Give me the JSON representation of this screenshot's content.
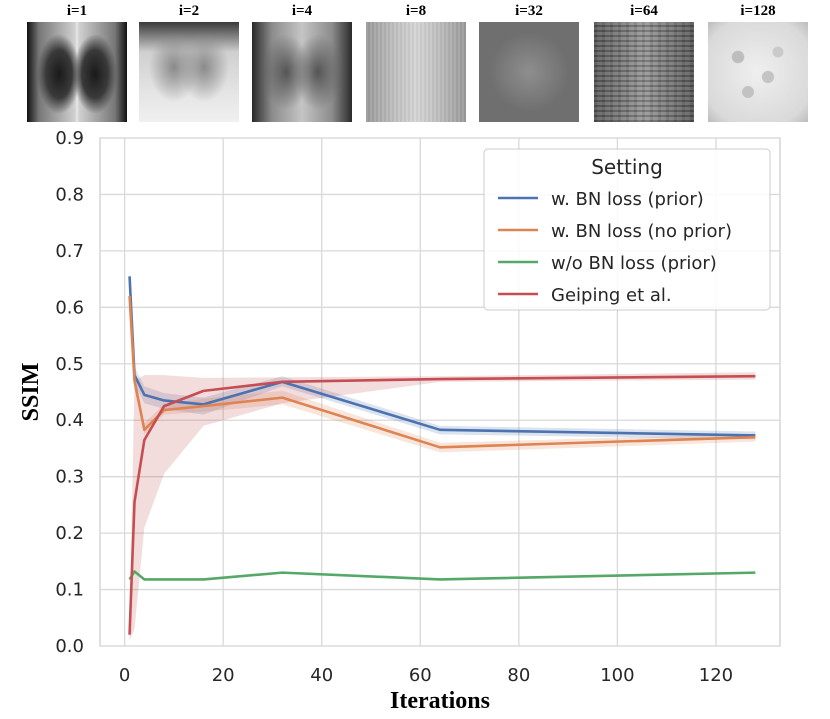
{
  "thumbnails": [
    {
      "label": "i=1",
      "style": "xray-clear"
    },
    {
      "label": "i=2",
      "style": "xray-bright"
    },
    {
      "label": "i=4",
      "style": "xray-soft"
    },
    {
      "label": "i=8",
      "style": "xray-faint"
    },
    {
      "label": "i=32",
      "style": "gray-dark"
    },
    {
      "label": "i=64",
      "style": "gray-striped"
    },
    {
      "label": "i=128",
      "style": "noise-light"
    }
  ],
  "chart_data": {
    "type": "line",
    "xlabel": "Iterations",
    "ylabel": "SSIM",
    "xlim": [
      -5,
      133
    ],
    "ylim": [
      0.0,
      0.9
    ],
    "xticks": [
      0,
      20,
      40,
      60,
      80,
      100,
      120
    ],
    "xtick_labels": [
      "0",
      "20",
      "40",
      "60",
      "80",
      "100",
      "120"
    ],
    "yticks": [
      0.0,
      0.1,
      0.2,
      0.3,
      0.4,
      0.5,
      0.6,
      0.7,
      0.8,
      0.9
    ],
    "ytick_labels": [
      "0.0",
      "0.1",
      "0.2",
      "0.3",
      "0.4",
      "0.5",
      "0.6",
      "0.7",
      "0.8",
      "0.9"
    ],
    "grid": true,
    "legend": {
      "title": "Setting",
      "location": "upper right"
    },
    "series": [
      {
        "name": "w. BN loss (prior)",
        "color": "#4c72b0",
        "x": [
          1,
          2,
          4,
          8,
          16,
          32,
          64,
          128
        ],
        "y": [
          0.655,
          0.48,
          0.445,
          0.435,
          0.428,
          0.468,
          0.383,
          0.373
        ],
        "band_lower": [
          0.64,
          0.465,
          0.43,
          0.42,
          0.41,
          0.46,
          0.375,
          0.366
        ],
        "band_upper": [
          0.665,
          0.495,
          0.46,
          0.448,
          0.44,
          0.478,
          0.39,
          0.38
        ]
      },
      {
        "name": "w. BN loss (no prior)",
        "color": "#dd8452",
        "x": [
          1,
          2,
          4,
          8,
          16,
          32,
          64,
          128
        ],
        "y": [
          0.62,
          0.47,
          0.383,
          0.418,
          0.425,
          0.44,
          0.352,
          0.37
        ],
        "band_lower": [
          0.61,
          0.455,
          0.375,
          0.41,
          0.415,
          0.428,
          0.343,
          0.362
        ],
        "band_upper": [
          0.635,
          0.485,
          0.395,
          0.428,
          0.438,
          0.452,
          0.36,
          0.376
        ]
      },
      {
        "name": "w/o BN loss (prior)",
        "color": "#55a868",
        "x": [
          1,
          2,
          4,
          8,
          16,
          32,
          64,
          128
        ],
        "y": [
          0.118,
          0.132,
          0.118,
          0.118,
          0.118,
          0.13,
          0.118,
          0.13
        ]
      },
      {
        "name": "Geiping et al.",
        "color": "#c44e52",
        "x": [
          1,
          2,
          4,
          8,
          16,
          32,
          64,
          128
        ],
        "y": [
          0.02,
          0.255,
          0.365,
          0.425,
          0.452,
          0.468,
          0.473,
          0.478
        ],
        "band_lower": [
          0.01,
          0.03,
          0.21,
          0.305,
          0.39,
          0.43,
          0.468,
          0.472
        ],
        "band_upper": [
          0.04,
          0.47,
          0.48,
          0.48,
          0.475,
          0.476,
          0.478,
          0.485
        ]
      }
    ]
  }
}
